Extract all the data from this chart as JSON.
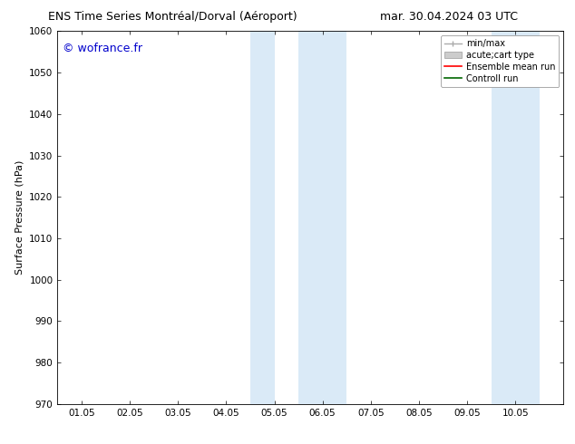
{
  "title_left": "ENS Time Series Montréal/Dorval (Aéroport)",
  "title_right": "mar. 30.04.2024 03 UTC",
  "ylabel": "Surface Pressure (hPa)",
  "ylim": [
    970,
    1060
  ],
  "yticks": [
    970,
    980,
    990,
    1000,
    1010,
    1020,
    1030,
    1040,
    1050,
    1060
  ],
  "xtick_labels": [
    "01.05",
    "02.05",
    "03.05",
    "04.05",
    "05.05",
    "06.05",
    "07.05",
    "08.05",
    "09.05",
    "10.05"
  ],
  "xtick_positions": [
    0,
    1,
    2,
    3,
    4,
    5,
    6,
    7,
    8,
    9
  ],
  "xlim": [
    -0.5,
    10.0
  ],
  "watermark": "© wofrance.fr",
  "watermark_color": "#0000cc",
  "bg_color": "#ffffff",
  "plot_bg_color": "#ffffff",
  "shaded_bands": [
    {
      "x_start": 3.5,
      "x_end": 4.0,
      "color": "#daeaf7"
    },
    {
      "x_start": 4.5,
      "x_end": 5.5,
      "color": "#daeaf7"
    },
    {
      "x_start": 8.5,
      "x_end": 9.0,
      "color": "#daeaf7"
    },
    {
      "x_start": 9.0,
      "x_end": 9.5,
      "color": "#daeaf7"
    }
  ],
  "title_fontsize": 9,
  "tick_fontsize": 7.5,
  "ylabel_fontsize": 8,
  "watermark_fontsize": 9,
  "legend_fontsize": 7
}
